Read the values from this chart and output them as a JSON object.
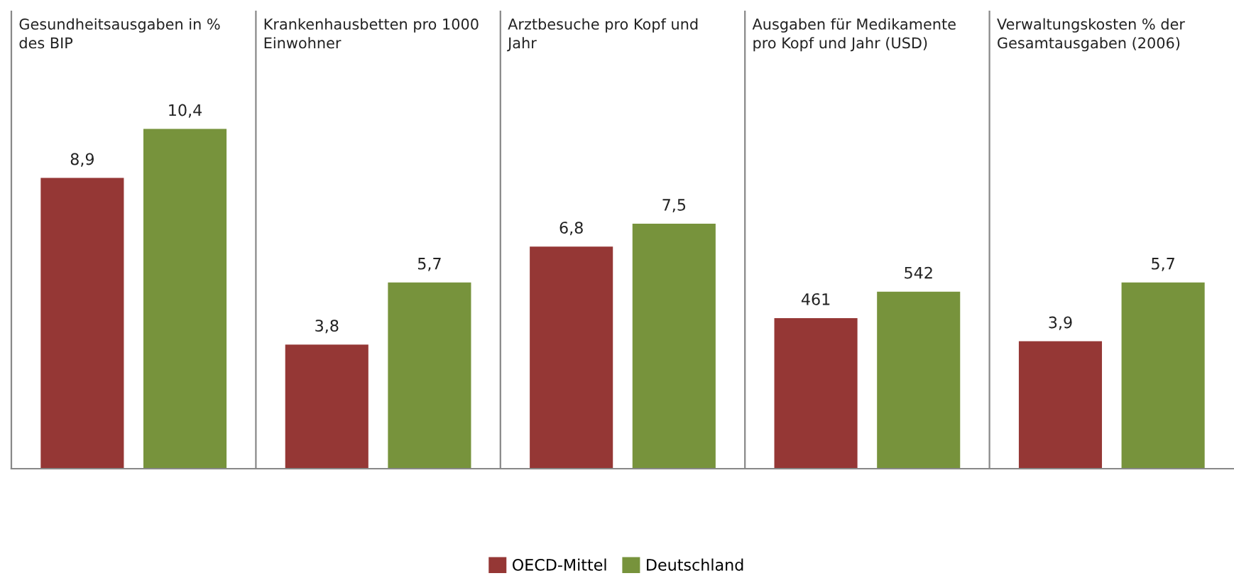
{
  "chart_data": [
    {
      "type": "bar",
      "title": "Gesundheitsausgaben in % des BIP",
      "categories": [
        null
      ],
      "ylim": [
        0,
        14
      ],
      "data_labels": true,
      "legend": "bottom",
      "tick_labels": false,
      "series": [
        {
          "name": "OECD-Mittel",
          "color": "#953735",
          "values": [
            8.9
          ],
          "value_labels": [
            "8,9"
          ]
        },
        {
          "name": "Deutschland",
          "color": "#77933c",
          "values": [
            10.4
          ],
          "value_labels": [
            "10,4"
          ]
        }
      ]
    },
    {
      "type": "bar",
      "title": "Krankenhausbetten pro 1000 Einwohner",
      "categories": [
        null
      ],
      "ylim": [
        0,
        14
      ],
      "data_labels": true,
      "tick_labels": false,
      "series": [
        {
          "color": "#953735",
          "values": [
            3.8
          ],
          "value_labels": [
            "3,8"
          ]
        },
        {
          "color": "#77933c",
          "values": [
            5.7
          ],
          "value_labels": [
            "5,7"
          ]
        }
      ]
    },
    {
      "type": "bar",
      "title": "Arztbesuche pro Kopf und Jahr",
      "categories": [
        null
      ],
      "ylim": [
        0,
        14
      ],
      "data_labels": true,
      "tick_labels": false,
      "series": [
        {
          "color": "#953735",
          "values": [
            6.8
          ],
          "value_labels": [
            "6,8"
          ]
        },
        {
          "color": "#77933c",
          "values": [
            7.5
          ],
          "value_labels": [
            "7,5"
          ]
        }
      ]
    },
    {
      "type": "bar",
      "title": "Ausgaben für Medikamente pro Kopf und Jahr (USD)",
      "categories": [
        null
      ],
      "ylim": [
        0,
        1400
      ],
      "data_labels": true,
      "tick_labels": false,
      "series": [
        {
          "color": "#953735",
          "values": [
            461
          ]
        },
        {
          "color": "#77933c",
          "values": [
            542
          ]
        }
      ]
    },
    {
      "type": "bar",
      "title": "Verwaltungskosten % der Gesamtausgaben (2006)",
      "categories": [
        null
      ],
      "ylim": [
        0,
        14
      ],
      "data_labels": true,
      "tick_labels": false,
      "series": [
        {
          "color": "#953735",
          "values": [
            3.9
          ],
          "value_labels": [
            "3,9"
          ]
        },
        {
          "color": "#77933c",
          "values": [
            5.7
          ],
          "value_labels": [
            "5,7"
          ]
        }
      ]
    }
  ]
}
